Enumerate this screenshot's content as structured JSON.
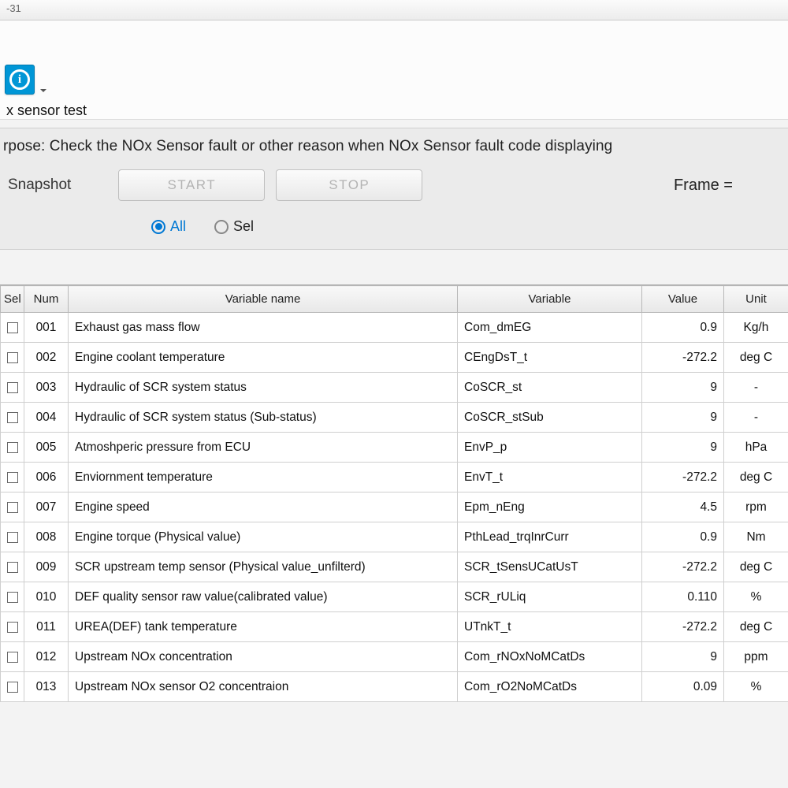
{
  "window": {
    "title_fragment": "-31"
  },
  "subtitle": "x sensor test",
  "panel": {
    "purpose_prefix": "rpose: ",
    "purpose": "Check the NOx Sensor fault or other reason when NOx Sensor fault code displaying",
    "snapshot_label": "Snapshot",
    "start_btn": "START",
    "stop_btn": "STOP",
    "frame_label": "Frame =",
    "radio_all": "All",
    "radio_sel": "Sel",
    "radio_selected": "all"
  },
  "table": {
    "columns": {
      "sel": "Sel",
      "num": "Num",
      "name": "Variable name",
      "var": "Variable",
      "value": "Value",
      "unit": "Unit"
    },
    "rows": [
      {
        "num": "001",
        "name": "Exhaust gas mass flow",
        "var": "Com_dmEG",
        "value": "0.9",
        "unit": "Kg/h"
      },
      {
        "num": "002",
        "name": "Engine coolant temperature",
        "var": "CEngDsT_t",
        "value": "-272.2",
        "unit": "deg C"
      },
      {
        "num": "003",
        "name": "Hydraulic of SCR system status",
        "var": "CoSCR_st",
        "value": "9",
        "unit": "-"
      },
      {
        "num": "004",
        "name": "Hydraulic of SCR system status (Sub-status)",
        "var": "CoSCR_stSub",
        "value": "9",
        "unit": "-"
      },
      {
        "num": "005",
        "name": "Atmoshperic pressure from ECU",
        "var": "EnvP_p",
        "value": "9",
        "unit": "hPa"
      },
      {
        "num": "006",
        "name": "Enviornment temperature",
        "var": "EnvT_t",
        "value": "-272.2",
        "unit": "deg C"
      },
      {
        "num": "007",
        "name": "Engine speed",
        "var": "Epm_nEng",
        "value": "4.5",
        "unit": "rpm"
      },
      {
        "num": "008",
        "name": "Engine torque (Physical value)",
        "var": "PthLead_trqInrCurr",
        "value": "0.9",
        "unit": "Nm"
      },
      {
        "num": "009",
        "name": "SCR upstream temp sensor (Physical value_unfilterd)",
        "var": "SCR_tSensUCatUsT",
        "value": "-272.2",
        "unit": "deg C"
      },
      {
        "num": "010",
        "name": "DEF quality sensor raw value(calibrated value)",
        "var": "SCR_rULiq",
        "value": "0.110",
        "unit": "%"
      },
      {
        "num": "011",
        "name": "UREA(DEF) tank temperature",
        "var": "UTnkT_t",
        "value": "-272.2",
        "unit": "deg C"
      },
      {
        "num": "012",
        "name": "Upstream NOx concentration",
        "var": "Com_rNOxNoMCatDs",
        "value": "9",
        "unit": "ppm"
      },
      {
        "num": "013",
        "name": "Upstream NOx sensor O2 concentraion",
        "var": "Com_rO2NoMCatDs",
        "value": "0.09",
        "unit": "%"
      }
    ]
  },
  "style": {
    "accent": "#0078d4",
    "info_button_bg": "#0096d6",
    "panel_bg": "#ebebeb",
    "header_grad_top": "#f8f8f8",
    "header_grad_bot": "#e8e8e8",
    "border": "#b8b8b8"
  }
}
